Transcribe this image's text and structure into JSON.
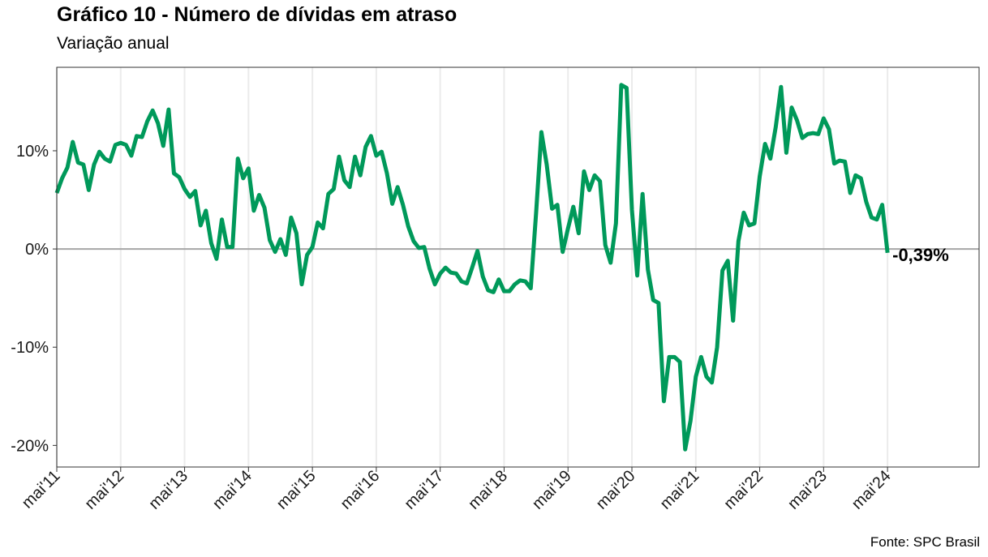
{
  "title": "Gráfico 10 - Número de dívidas em atraso",
  "subtitle": "Variação anual",
  "source": "Fonte: SPC Brasil",
  "colors": {
    "line": "#00995a",
    "zero_line": "#a6a6a6",
    "grid": "#ebebeb",
    "frame": "#333333"
  },
  "chart_data": {
    "type": "line",
    "title": "Gráfico 10 - Número de dívidas em atraso",
    "subtitle": "Variação anual",
    "xlabel": "",
    "ylabel": "",
    "ylim": [
      -22.2,
      18.5
    ],
    "y_ticks": [
      -20,
      -10,
      0,
      10
    ],
    "y_tick_labels": [
      "-20%",
      "-10%",
      "0%",
      "10%"
    ],
    "x_tick_labels": [
      "mai'11",
      "mai'12",
      "mai'13",
      "mai'14",
      "mai'15",
      "mai'16",
      "mai'17",
      "mai'18",
      "mai'19",
      "mai'20",
      "mai'21",
      "mai'22",
      "mai'23",
      "mai'24"
    ],
    "x_start": "mai'11",
    "x_frequency": "monthly",
    "grid": true,
    "last_value_label": "-0,39%",
    "series": [
      {
        "values": [
          5.7,
          7.2,
          8.3,
          10.9,
          8.8,
          8.6,
          6.0,
          8.6,
          9.9,
          9.2,
          8.9,
          10.6,
          10.8,
          10.6,
          9.5,
          11.5,
          11.4,
          13.0,
          14.1,
          12.8,
          10.5,
          14.2,
          7.7,
          7.3,
          6.1,
          5.3,
          5.9,
          2.4,
          3.9,
          0.6,
          -1.0,
          3.0,
          0.2,
          0.2,
          9.2,
          7.2,
          8.2,
          3.9,
          5.5,
          4.2,
          0.9,
          -0.3,
          1.0,
          -0.6,
          3.2,
          1.6,
          -3.6,
          -0.6,
          0.2,
          2.7,
          2.1,
          5.6,
          6.1,
          9.4,
          7.0,
          6.3,
          9.4,
          7.5,
          10.4,
          11.5,
          9.5,
          9.9,
          7.7,
          4.6,
          6.3,
          4.5,
          2.3,
          0.8,
          0.1,
          0.2,
          -2.0,
          -3.6,
          -2.5,
          -1.9,
          -2.4,
          -2.5,
          -3.3,
          -3.5,
          -1.9,
          -0.2,
          -2.8,
          -4.2,
          -4.4,
          -3.1,
          -4.3,
          -4.3,
          -3.6,
          -3.2,
          -3.3,
          -4.0,
          3.6,
          11.9,
          8.6,
          4.1,
          4.5,
          -0.3,
          2.1,
          4.3,
          1.6,
          7.9,
          6.0,
          7.5,
          6.9,
          0.4,
          -1.4,
          2.6,
          16.7,
          16.4,
          4.0,
          -2.7,
          5.6,
          -2.1,
          -5.2,
          -5.5,
          -15.5,
          -11.0,
          -11.0,
          -11.5,
          -20.4,
          -17.5,
          -13.0,
          -11.0,
          -13.0,
          -13.6,
          -10.0,
          -2.2,
          -1.2,
          -7.3,
          0.8,
          3.7,
          2.4,
          2.6,
          7.4,
          10.7,
          9.2,
          12.4,
          16.5,
          9.8,
          14.4,
          13.1,
          11.3,
          11.7,
          11.8,
          11.7,
          13.3,
          12.2,
          8.7,
          9.0,
          8.9,
          5.7,
          7.5,
          7.2,
          4.8,
          3.2,
          3.0,
          4.5,
          -0.39
        ]
      }
    ]
  }
}
